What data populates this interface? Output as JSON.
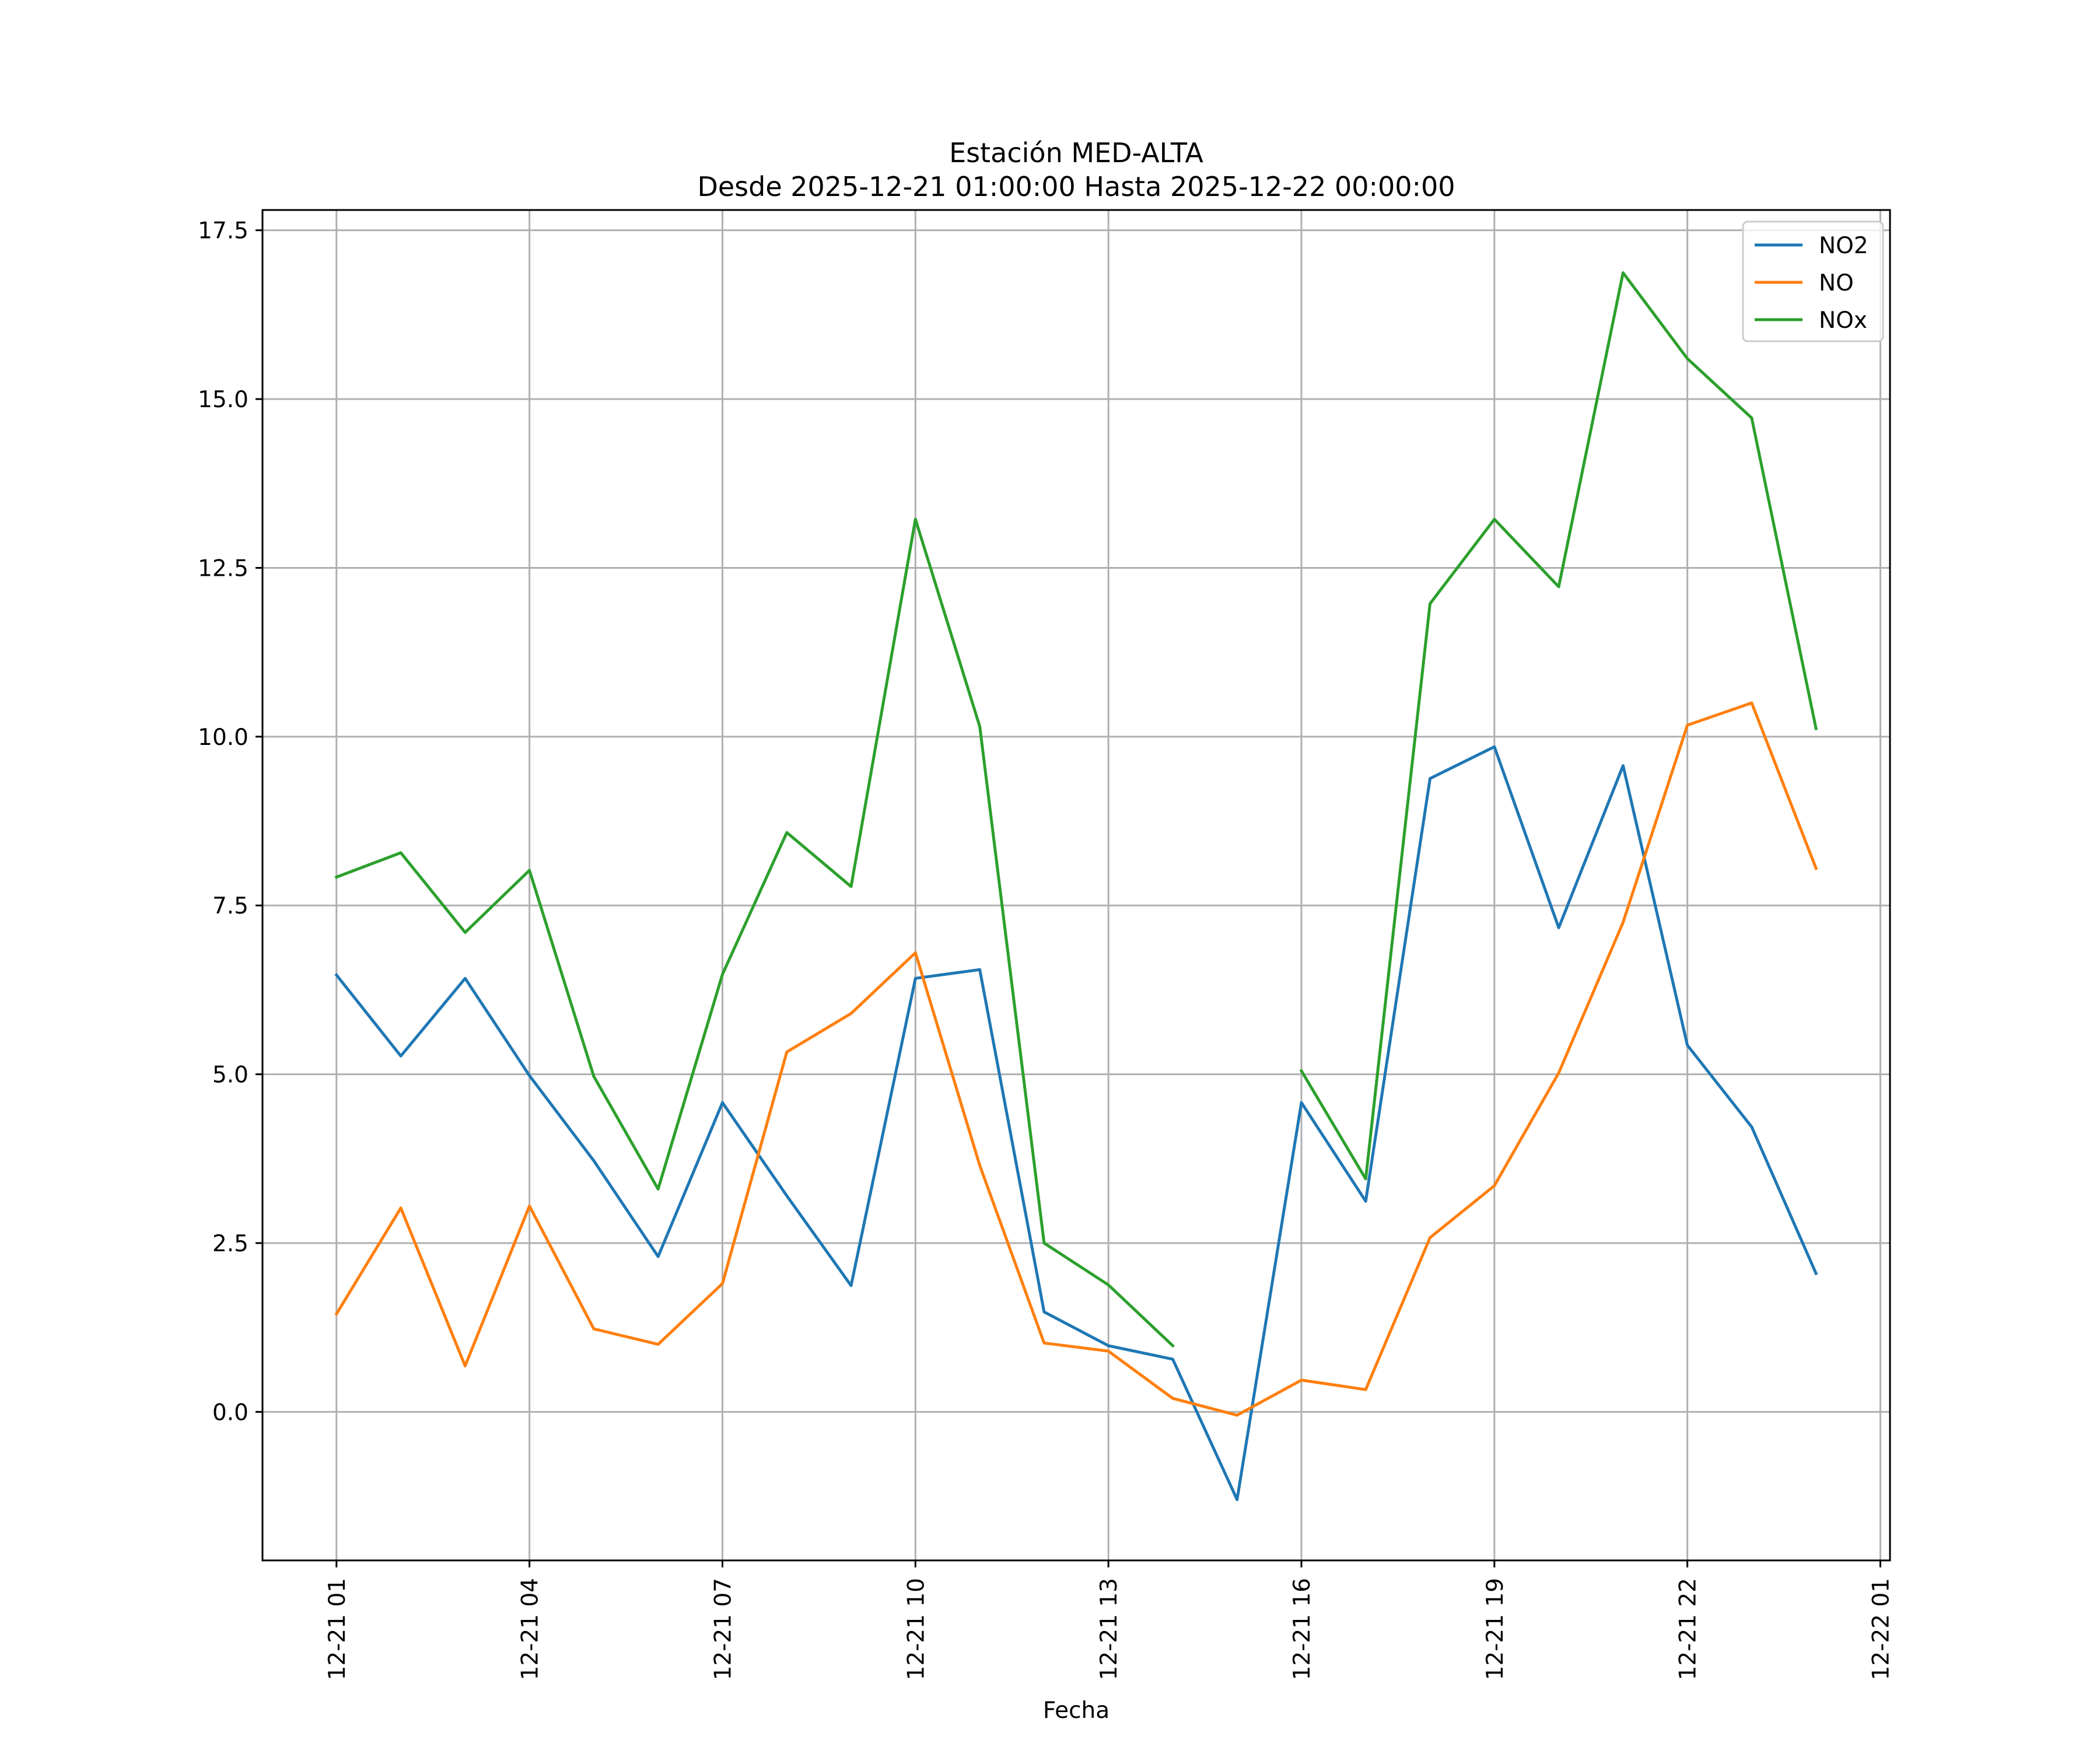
{
  "chart_data": {
    "type": "line",
    "title_line1": "Estación MED-ALTA",
    "title_line2": "Desde 2025-12-21 01:00:00 Hasta 2025-12-22 00:00:00",
    "xlabel": "Fecha",
    "ylabel": "",
    "grid": true,
    "legend_position": "top-right",
    "x": [
      "2025-12-21 01:00",
      "2025-12-21 02:00",
      "2025-12-21 03:00",
      "2025-12-21 04:00",
      "2025-12-21 05:00",
      "2025-12-21 06:00",
      "2025-12-21 07:00",
      "2025-12-21 08:00",
      "2025-12-21 09:00",
      "2025-12-21 10:00",
      "2025-12-21 11:00",
      "2025-12-21 12:00",
      "2025-12-21 13:00",
      "2025-12-21 14:00",
      "2025-12-21 15:00",
      "2025-12-21 16:00",
      "2025-12-21 17:00",
      "2025-12-21 18:00",
      "2025-12-21 19:00",
      "2025-12-21 20:00",
      "2025-12-21 21:00",
      "2025-12-21 22:00",
      "2025-12-21 23:00",
      "2025-12-22 00:00"
    ],
    "xlim": [
      "2025-12-20 23:51",
      "2025-12-22 01:09"
    ],
    "ylim": [
      -2.2,
      17.8
    ],
    "x_ticks": [
      "2025-12-21 01:00",
      "2025-12-21 04:00",
      "2025-12-21 07:00",
      "2025-12-21 10:00",
      "2025-12-21 13:00",
      "2025-12-21 16:00",
      "2025-12-21 19:00",
      "2025-12-21 22:00",
      "2025-12-22 01:00"
    ],
    "x_tick_labels": [
      "12-21 01",
      "12-21 04",
      "12-21 07",
      "12-21 10",
      "12-21 13",
      "12-21 16",
      "12-21 19",
      "12-21 22",
      "12-22 01"
    ],
    "y_ticks": [
      0.0,
      2.5,
      5.0,
      7.5,
      10.0,
      12.5,
      15.0,
      17.5
    ],
    "y_tick_labels": [
      "0.0",
      "2.5",
      "5.0",
      "7.5",
      "10.0",
      "12.5",
      "15.0",
      "17.5"
    ],
    "series": [
      {
        "name": "NO2",
        "color": "#1f77b4",
        "values": [
          6.47,
          5.27,
          6.42,
          4.98,
          3.72,
          2.3,
          4.58,
          3.2,
          1.87,
          6.42,
          6.55,
          1.48,
          0.98,
          0.78,
          -1.3,
          4.58,
          3.12,
          9.38,
          9.85,
          7.17,
          9.57,
          5.43,
          4.22,
          2.05
        ]
      },
      {
        "name": "NO",
        "color": "#ff7f0e",
        "values": [
          1.45,
          3.02,
          0.68,
          3.05,
          1.23,
          1.0,
          1.9,
          5.33,
          5.9,
          6.8,
          3.65,
          1.02,
          0.9,
          0.2,
          -0.05,
          0.47,
          0.33,
          2.58,
          3.35,
          5.02,
          7.25,
          10.17,
          10.5,
          8.05
        ]
      },
      {
        "name": "NOx",
        "color": "#2ca02c",
        "values": [
          7.92,
          8.28,
          7.1,
          8.02,
          4.97,
          3.3,
          6.48,
          8.58,
          7.78,
          13.22,
          10.15,
          2.5,
          1.88,
          0.98,
          null,
          5.05,
          3.45,
          11.97,
          13.22,
          12.22,
          16.87,
          15.6,
          14.72,
          10.12
        ]
      }
    ]
  }
}
